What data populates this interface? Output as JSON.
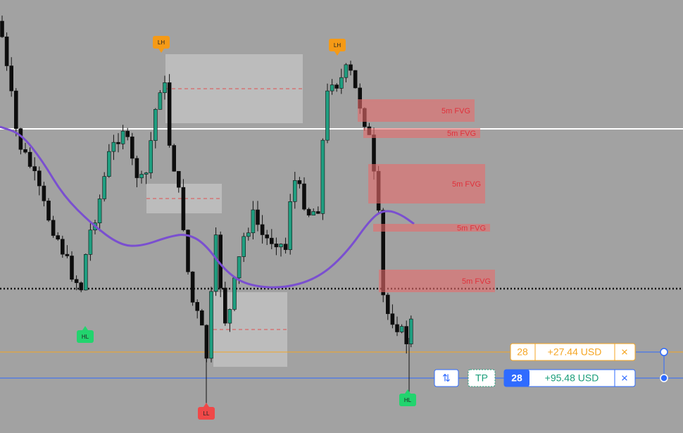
{
  "markers": [
    {
      "label": "LH"
    },
    {
      "label": "LH"
    },
    {
      "label": "HL"
    },
    {
      "label": "HL"
    },
    {
      "label": "LL"
    }
  ],
  "fvg_zones": [
    {
      "label": "5m FVG"
    },
    {
      "label": "5m FVG"
    },
    {
      "label": "5m FVG"
    },
    {
      "label": "5m FVG"
    },
    {
      "label": "5m FVG"
    }
  ],
  "orders": [
    {
      "quantity": 28,
      "pnl": "+27.44 USD",
      "close": "×"
    },
    {
      "reverse": "⇅",
      "tp": "TP",
      "quantity": 28,
      "pnl": "+95.48 USD",
      "close": "×"
    }
  ]
}
